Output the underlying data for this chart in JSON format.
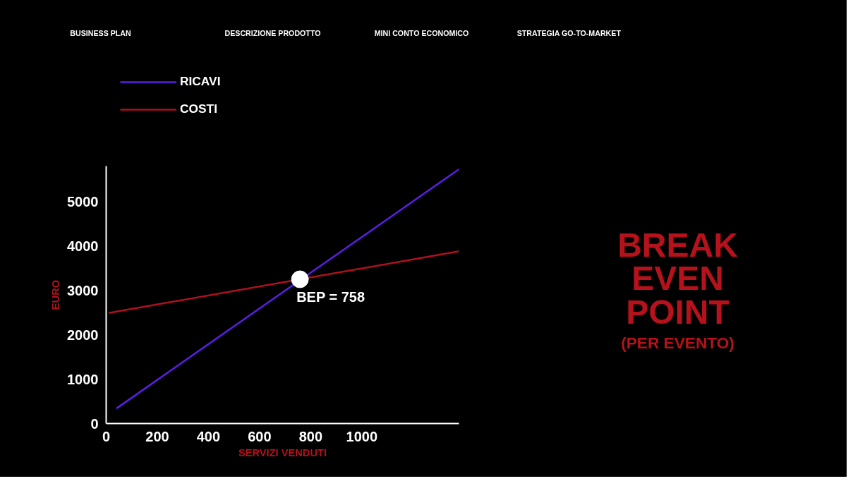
{
  "chart_data": {
    "type": "line",
    "title": "BREAK EVEN POINT",
    "subtitle": "(PER EVENTO)",
    "xlabel": "SERVIZI VENDUTI",
    "ylabel": "EURO",
    "annotations": [
      "BUSINESS PLAN",
      "DESCRIZIONE PRODOTTO",
      "MINI CONTO ECONOMICO",
      "STRATEGIA GO-TO-MARKET",
      {
        "text": "BEP = 758",
        "x": 758,
        "y": 3250
      }
    ],
    "series": [
      {
        "name": "RICAVI",
        "color": "#5a1ee8",
        "x": [
          40,
          1380
        ],
        "values": [
          340,
          5730
        ]
      },
      {
        "name": "COSTI",
        "color": "#b0101e",
        "x": [
          10,
          1380
        ],
        "values": [
          2490,
          3880
        ]
      }
    ],
    "xlim": [
      0,
      1380
    ],
    "ylim": [
      0,
      5800
    ],
    "xticks": [
      0,
      200,
      400,
      600,
      800,
      1000
    ],
    "yticks": [
      0,
      1000,
      2000,
      3000,
      4000,
      5000
    ],
    "grid": false,
    "legend": "top left",
    "marker": "none",
    "line_style": "solid"
  }
}
